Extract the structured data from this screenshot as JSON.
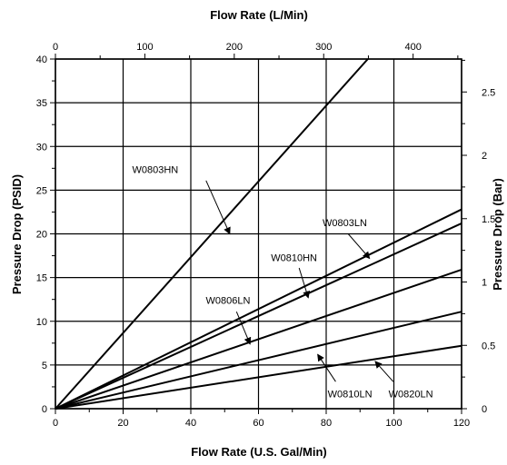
{
  "chart_data": {
    "type": "line",
    "title": "",
    "xlabel": "Flow Rate (U.S. Gal/Min)",
    "ylabel": "Pressure Drop (PSID)",
    "x2label": "Flow Rate (L/Min)",
    "y2label": "Pressure Drop (Bar)",
    "xlim": [
      0,
      120
    ],
    "ylim": [
      0,
      40
    ],
    "x2lim": [
      0,
      454.2
    ],
    "y2lim": [
      0,
      2.76
    ],
    "x_ticks": [
      "0",
      "20",
      "40",
      "60",
      "80",
      "100",
      "120"
    ],
    "y_ticks": [
      "0",
      "5",
      "10",
      "15",
      "20",
      "25",
      "30",
      "35",
      "40"
    ],
    "x2_ticks": [
      "0",
      "100",
      "200",
      "300",
      "400"
    ],
    "y2_ticks": [
      "0",
      "0.5",
      "1",
      "1.5",
      "2",
      "2.5"
    ],
    "grid": true,
    "legend": "none (series labeled by annotations)",
    "line_color": "#000000",
    "series": [
      {
        "name": "W0803HN",
        "x": [
          0,
          92.3
        ],
        "y": [
          0,
          40
        ]
      },
      {
        "name": "W0803LN",
        "x": [
          0,
          120
        ],
        "y": [
          0,
          22.8
        ]
      },
      {
        "name": "W0810HN",
        "x": [
          0,
          120
        ],
        "y": [
          0,
          21.2
        ]
      },
      {
        "name": "W0806LN",
        "x": [
          0,
          120
        ],
        "y": [
          0,
          15.9
        ]
      },
      {
        "name": "W0810LN",
        "x": [
          0,
          120
        ],
        "y": [
          0,
          11.1
        ]
      },
      {
        "name": "W0820LN",
        "x": [
          0,
          120
        ],
        "y": [
          0,
          7.2
        ]
      }
    ]
  }
}
